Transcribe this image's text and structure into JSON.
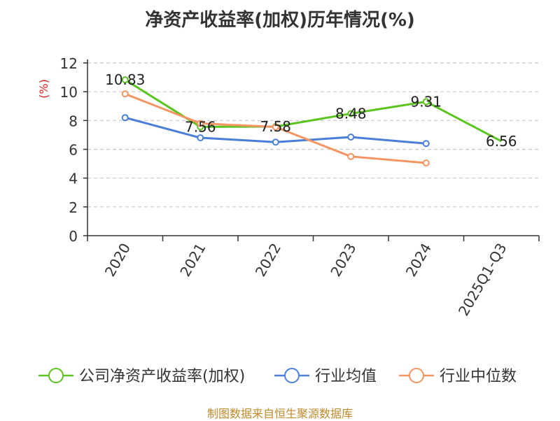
{
  "chart_data": {
    "type": "line",
    "title": "净资产收益率(加权)历年情况(%)",
    "ylabel": "(%)",
    "xlabel": "",
    "categories": [
      "2020",
      "2021",
      "2022",
      "2023",
      "2024",
      "2025Q1-Q3"
    ],
    "ylim": [
      0,
      12
    ],
    "yticks": [
      "0",
      "2",
      "4",
      "6",
      "8",
      "10",
      "12"
    ],
    "grid": true,
    "legend_position": "bottom",
    "series": [
      {
        "name": "公司净资产收益率(加权)",
        "color": "#5bc41e",
        "values": [
          10.83,
          7.56,
          7.58,
          8.48,
          9.31,
          6.56
        ],
        "labels": [
          "10.83",
          "7.56",
          "7.58",
          "8.48",
          "9.31",
          "6.56"
        ]
      },
      {
        "name": "行业均值",
        "color": "#4a7fd9",
        "values": [
          8.2,
          6.8,
          6.5,
          6.85,
          6.4,
          null
        ]
      },
      {
        "name": "行业中位数",
        "color": "#f59662",
        "values": [
          9.85,
          7.8,
          7.55,
          5.5,
          5.05,
          null
        ]
      }
    ],
    "source": "制图数据来自恒生聚源数据库"
  }
}
